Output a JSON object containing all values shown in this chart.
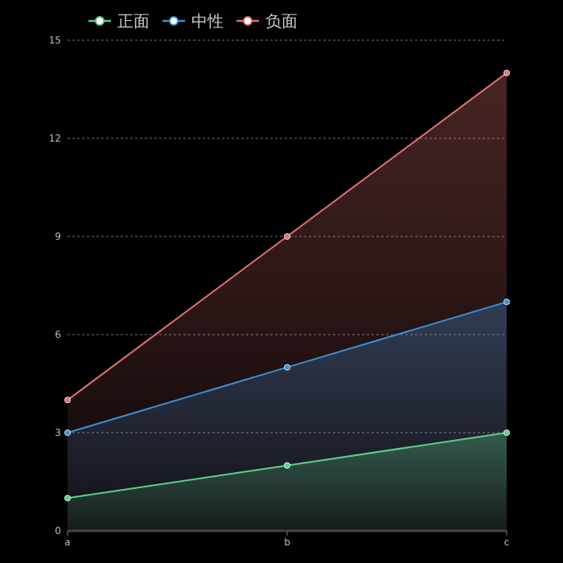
{
  "chart_data": {
    "type": "area",
    "categories": [
      "a",
      "b",
      "c"
    ],
    "series": [
      {
        "name": "正面",
        "color": "#5ccf8a",
        "values": [
          1,
          2,
          3
        ]
      },
      {
        "name": "中性",
        "color": "#3d8fd8",
        "values": [
          3,
          5,
          7
        ]
      },
      {
        "name": "负面",
        "color": "#e07070",
        "values": [
          4,
          9,
          14
        ]
      }
    ],
    "ylim": [
      0,
      15
    ],
    "yticks": [
      0,
      3,
      6,
      9,
      12,
      15
    ],
    "grid": "y",
    "legend": "top left",
    "marker": "circle"
  }
}
